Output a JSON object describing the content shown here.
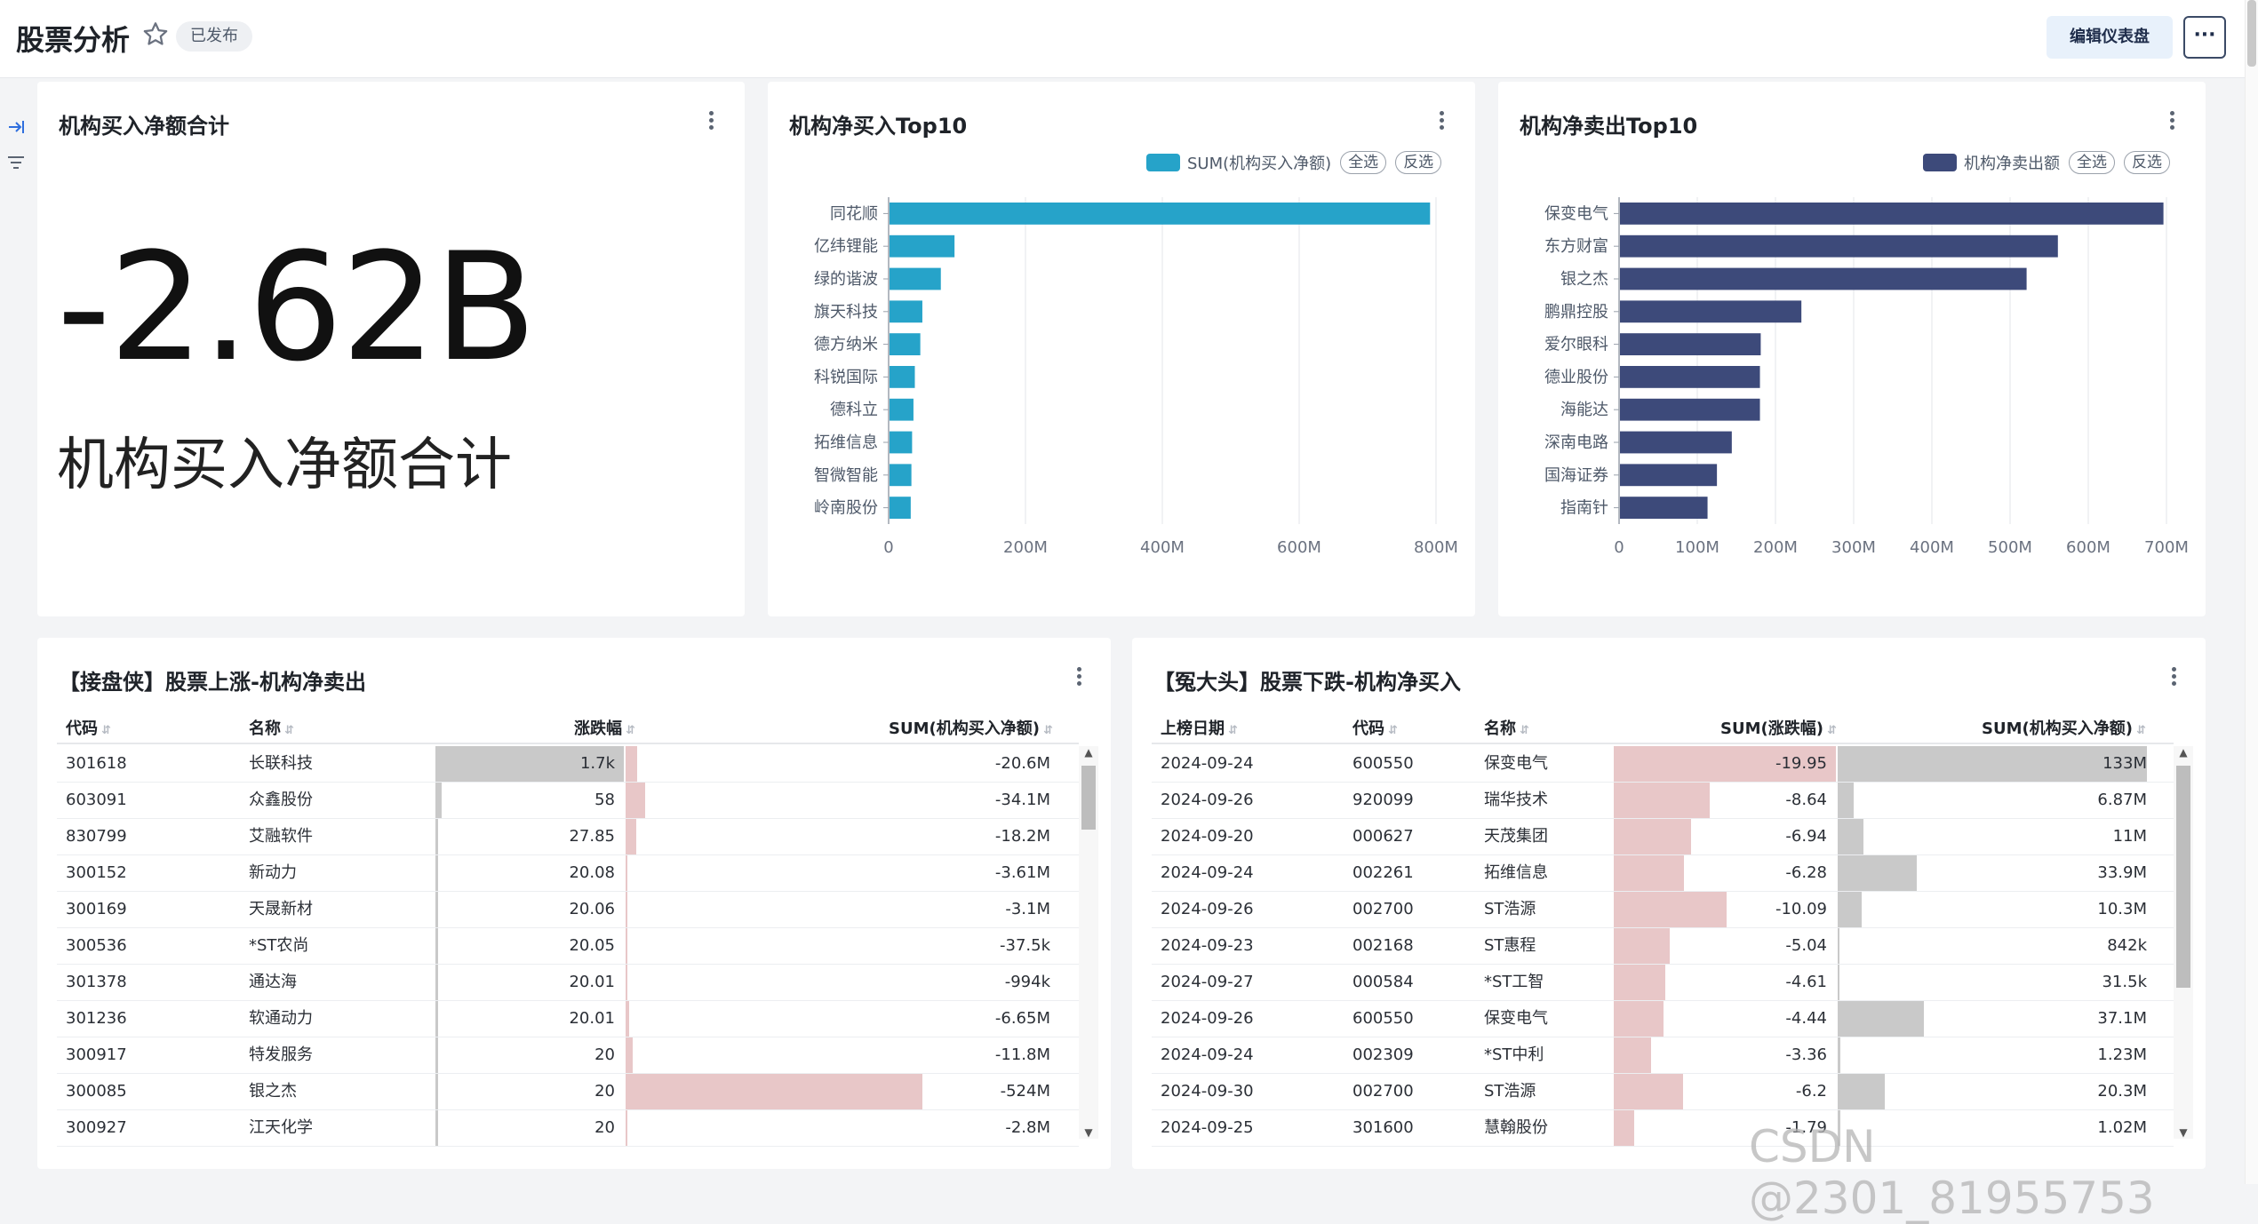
{
  "header": {
    "title": "股票分析",
    "status_badge": "已发布",
    "edit_label": "编辑仪表盘",
    "more_label": "···"
  },
  "kpi": {
    "title": "机构买入净额合计",
    "value": "-2.62B",
    "label": "机构买入净额合计"
  },
  "chart_buy": {
    "title": "机构净买入Top10",
    "legend_label": "SUM(机构买入净额)",
    "select_all": "全选",
    "invert": "反选"
  },
  "chart_sell": {
    "title": "机构净卖出Top10",
    "legend_label": "机构净卖出额",
    "select_all": "全选",
    "invert": "反选"
  },
  "chart_data": [
    {
      "type": "bar",
      "orientation": "horizontal",
      "title": "机构净买入Top10",
      "categories": [
        "同花顺",
        "亿纬锂能",
        "绿的谐波",
        "旗天科技",
        "德方纳米",
        "科锐国际",
        "德科立",
        "拓维信息",
        "智微智能",
        "岭南股份"
      ],
      "series": [
        {
          "name": "SUM(机构买入净额)",
          "values": [
            790,
            95,
            75,
            48,
            45,
            37,
            35,
            33,
            32,
            31
          ]
        }
      ],
      "unit": "M",
      "xlim": [
        0,
        800
      ],
      "ticks": [
        "0",
        "200M",
        "400M",
        "600M",
        "800M"
      ],
      "color": "#26a3c9",
      "grid": true,
      "legend": "top-right"
    },
    {
      "type": "bar",
      "orientation": "horizontal",
      "title": "机构净卖出Top10",
      "categories": [
        "保变电气",
        "东方财富",
        "银之杰",
        "鹏鼎控股",
        "爱尔眼科",
        "德业股份",
        "海能达",
        "深南电路",
        "国海证券",
        "指南针"
      ],
      "series": [
        {
          "name": "机构净卖出额",
          "values": [
            695,
            560,
            520,
            232,
            180,
            179,
            179,
            143,
            124,
            112
          ]
        }
      ],
      "unit": "M",
      "xlim": [
        0,
        700
      ],
      "ticks": [
        "0",
        "100M",
        "200M",
        "300M",
        "400M",
        "500M",
        "600M",
        "700M"
      ],
      "color": "#3d4a7a",
      "grid": true,
      "legend": "top-right"
    }
  ],
  "table_rise": {
    "title": "【接盘侠】股票上涨-机构净卖出",
    "headers": [
      "代码",
      "名称",
      "涨跌幅",
      "SUM(机构买入净额)"
    ],
    "rows": [
      {
        "code": "301618",
        "name": "长联科技",
        "change": "1.7k",
        "net": "-20.6M",
        "change_frac": 1.0,
        "net_frac": 0.039
      },
      {
        "code": "603091",
        "name": "众鑫股份",
        "change": "58",
        "net": "-34.1M",
        "change_frac": 0.034,
        "net_frac": 0.065
      },
      {
        "code": "830799",
        "name": "艾融软件",
        "change": "27.85",
        "net": "-18.2M",
        "change_frac": 0.016,
        "net_frac": 0.035
      },
      {
        "code": "300152",
        "name": "新动力",
        "change": "20.08",
        "net": "-3.61M",
        "change_frac": 0.012,
        "net_frac": 0.007
      },
      {
        "code": "300169",
        "name": "天晟新材",
        "change": "20.06",
        "net": "-3.1M",
        "change_frac": 0.012,
        "net_frac": 0.006
      },
      {
        "code": "300536",
        "name": "*ST农尚",
        "change": "20.05",
        "net": "-37.5k",
        "change_frac": 0.012,
        "net_frac": 0.0
      },
      {
        "code": "301378",
        "name": "通达海",
        "change": "20.01",
        "net": "-994k",
        "change_frac": 0.012,
        "net_frac": 0.002
      },
      {
        "code": "301236",
        "name": "软通动力",
        "change": "20.01",
        "net": "-6.65M",
        "change_frac": 0.012,
        "net_frac": 0.013
      },
      {
        "code": "300917",
        "name": "特发服务",
        "change": "20",
        "net": "-11.8M",
        "change_frac": 0.012,
        "net_frac": 0.023
      },
      {
        "code": "300085",
        "name": "银之杰",
        "change": "20",
        "net": "-524M",
        "change_frac": 0.012,
        "net_frac": 1.0
      },
      {
        "code": "300927",
        "name": "江天化学",
        "change": "20",
        "net": "-2.8M",
        "change_frac": 0.012,
        "net_frac": 0.005
      }
    ]
  },
  "table_fall": {
    "title": "【冤大头】股票下跌-机构净买入",
    "headers": [
      "上榜日期",
      "代码",
      "名称",
      "SUM(涨跌幅)",
      "SUM(机构买入净额)"
    ],
    "rows": [
      {
        "date": "2024-09-24",
        "code": "600550",
        "name": "保变电气",
        "change": "-19.95",
        "net": "133M",
        "change_frac": 1.0,
        "net_frac": 1.0
      },
      {
        "date": "2024-09-26",
        "code": "920099",
        "name": "瑞华技术",
        "change": "-8.64",
        "net": "6.87M",
        "change_frac": 0.433,
        "net_frac": 0.052
      },
      {
        "date": "2024-09-20",
        "code": "000627",
        "name": "天茂集团",
        "change": "-6.94",
        "net": "11M",
        "change_frac": 0.348,
        "net_frac": 0.083
      },
      {
        "date": "2024-09-24",
        "code": "002261",
        "name": "拓维信息",
        "change": "-6.28",
        "net": "33.9M",
        "change_frac": 0.315,
        "net_frac": 0.255
      },
      {
        "date": "2024-09-26",
        "code": "002700",
        "name": "ST浩源",
        "change": "-10.09",
        "net": "10.3M",
        "change_frac": 0.506,
        "net_frac": 0.077
      },
      {
        "date": "2024-09-23",
        "code": "002168",
        "name": "ST惠程",
        "change": "-5.04",
        "net": "842k",
        "change_frac": 0.253,
        "net_frac": 0.006
      },
      {
        "date": "2024-09-27",
        "code": "000584",
        "name": "*ST工智",
        "change": "-4.61",
        "net": "31.5k",
        "change_frac": 0.231,
        "net_frac": 0.0
      },
      {
        "date": "2024-09-26",
        "code": "600550",
        "name": "保变电气",
        "change": "-4.44",
        "net": "37.1M",
        "change_frac": 0.223,
        "net_frac": 0.279
      },
      {
        "date": "2024-09-24",
        "code": "002309",
        "name": "*ST中利",
        "change": "-3.36",
        "net": "1.23M",
        "change_frac": 0.168,
        "net_frac": 0.009
      },
      {
        "date": "2024-09-30",
        "code": "002700",
        "name": "ST浩源",
        "change": "-6.2",
        "net": "20.3M",
        "change_frac": 0.311,
        "net_frac": 0.153
      },
      {
        "date": "2024-09-25",
        "code": "301600",
        "name": "慧翰股份",
        "change": "-1.79",
        "net": "1.02M",
        "change_frac": 0.09,
        "net_frac": 0.008
      }
    ]
  },
  "watermark": "CSDN @2301_81955753"
}
